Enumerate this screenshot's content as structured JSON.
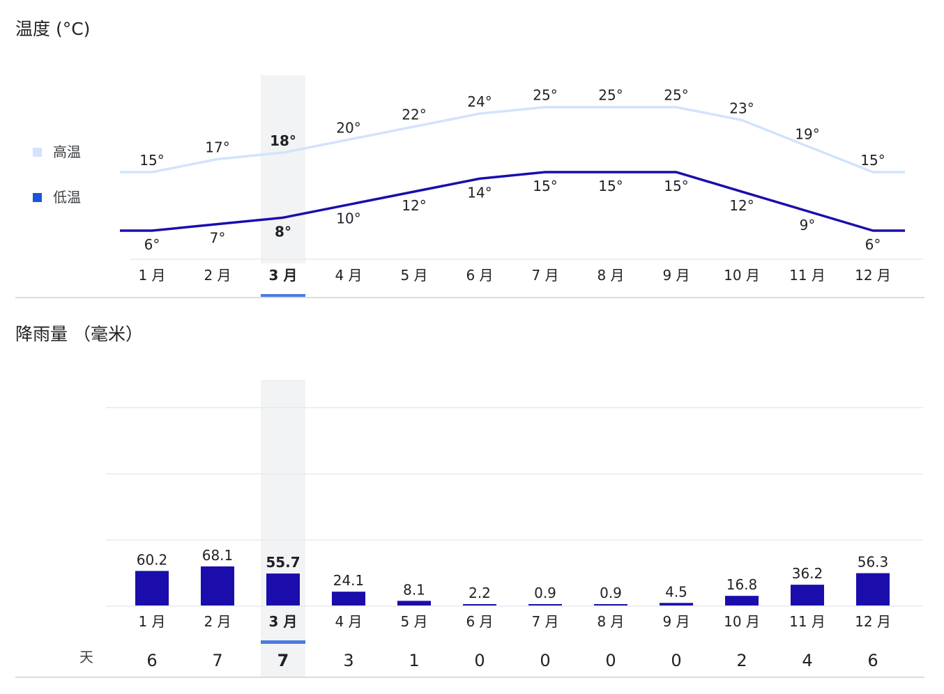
{
  "temperature": {
    "title": "温度 (°C)",
    "legend": [
      {
        "label": "高温",
        "color": "#d2e3fc"
      },
      {
        "label": "低温",
        "color": "#1a0dab"
      }
    ]
  },
  "precipitation": {
    "title": "降雨量 （毫米）",
    "days_label": "天"
  },
  "selected_month_index": 2,
  "colors": {
    "high_line": "#d2e3fc",
    "high_legend": "#d2e3fc",
    "low_line": "#1a0dab",
    "low_legend": "#1a56db",
    "bar": "#1a0dab",
    "highlight_band": "#f1f3f4",
    "selected_indicator": "#4a7be0",
    "grid": "#e8eaed",
    "text": "#202124",
    "subtle_text": "#3c4043"
  },
  "chart_data": [
    {
      "type": "line",
      "title": "温度 (°C)",
      "categories": [
        "1 月",
        "2 月",
        "3 月",
        "4 月",
        "5 月",
        "6 月",
        "7 月",
        "8 月",
        "9 月",
        "10 月",
        "11 月",
        "12 月"
      ],
      "series": [
        {
          "name": "高温",
          "values": [
            15,
            17,
            18,
            20,
            22,
            24,
            25,
            25,
            25,
            23,
            19,
            15
          ],
          "labels": [
            "15°",
            "17°",
            "18°",
            "20°",
            "22°",
            "24°",
            "25°",
            "25°",
            "25°",
            "23°",
            "19°",
            "15°"
          ]
        },
        {
          "name": "低温",
          "values": [
            6,
            7,
            8,
            10,
            12,
            14,
            15,
            15,
            15,
            12,
            9,
            6
          ],
          "labels": [
            "6°",
            "7°",
            "8°",
            "10°",
            "12°",
            "14°",
            "15°",
            "15°",
            "15°",
            "12°",
            "9°",
            "6°"
          ]
        }
      ],
      "legend_position": "left"
    },
    {
      "type": "bar",
      "title": "降雨量 （毫米）",
      "categories": [
        "1 月",
        "2 月",
        "3 月",
        "4 月",
        "5 月",
        "6 月",
        "7 月",
        "8 月",
        "9 月",
        "10 月",
        "11 月",
        "12 月"
      ],
      "values": [
        60.2,
        68.1,
        55.7,
        24.1,
        8.1,
        2.2,
        0.9,
        0.9,
        4.5,
        16.8,
        36.2,
        56.3
      ],
      "labels": [
        "60.2",
        "68.1",
        "55.7",
        "24.1",
        "8.1",
        "2.2",
        "0.9",
        "0.9",
        "4.5",
        "16.8",
        "36.2",
        "56.3"
      ],
      "ylim": [
        0,
        300
      ],
      "grid": true,
      "rainy_days_label": "天",
      "rainy_days": [
        "6",
        "7",
        "7",
        "3",
        "1",
        "0",
        "0",
        "0",
        "0",
        "2",
        "4",
        "6"
      ]
    }
  ]
}
